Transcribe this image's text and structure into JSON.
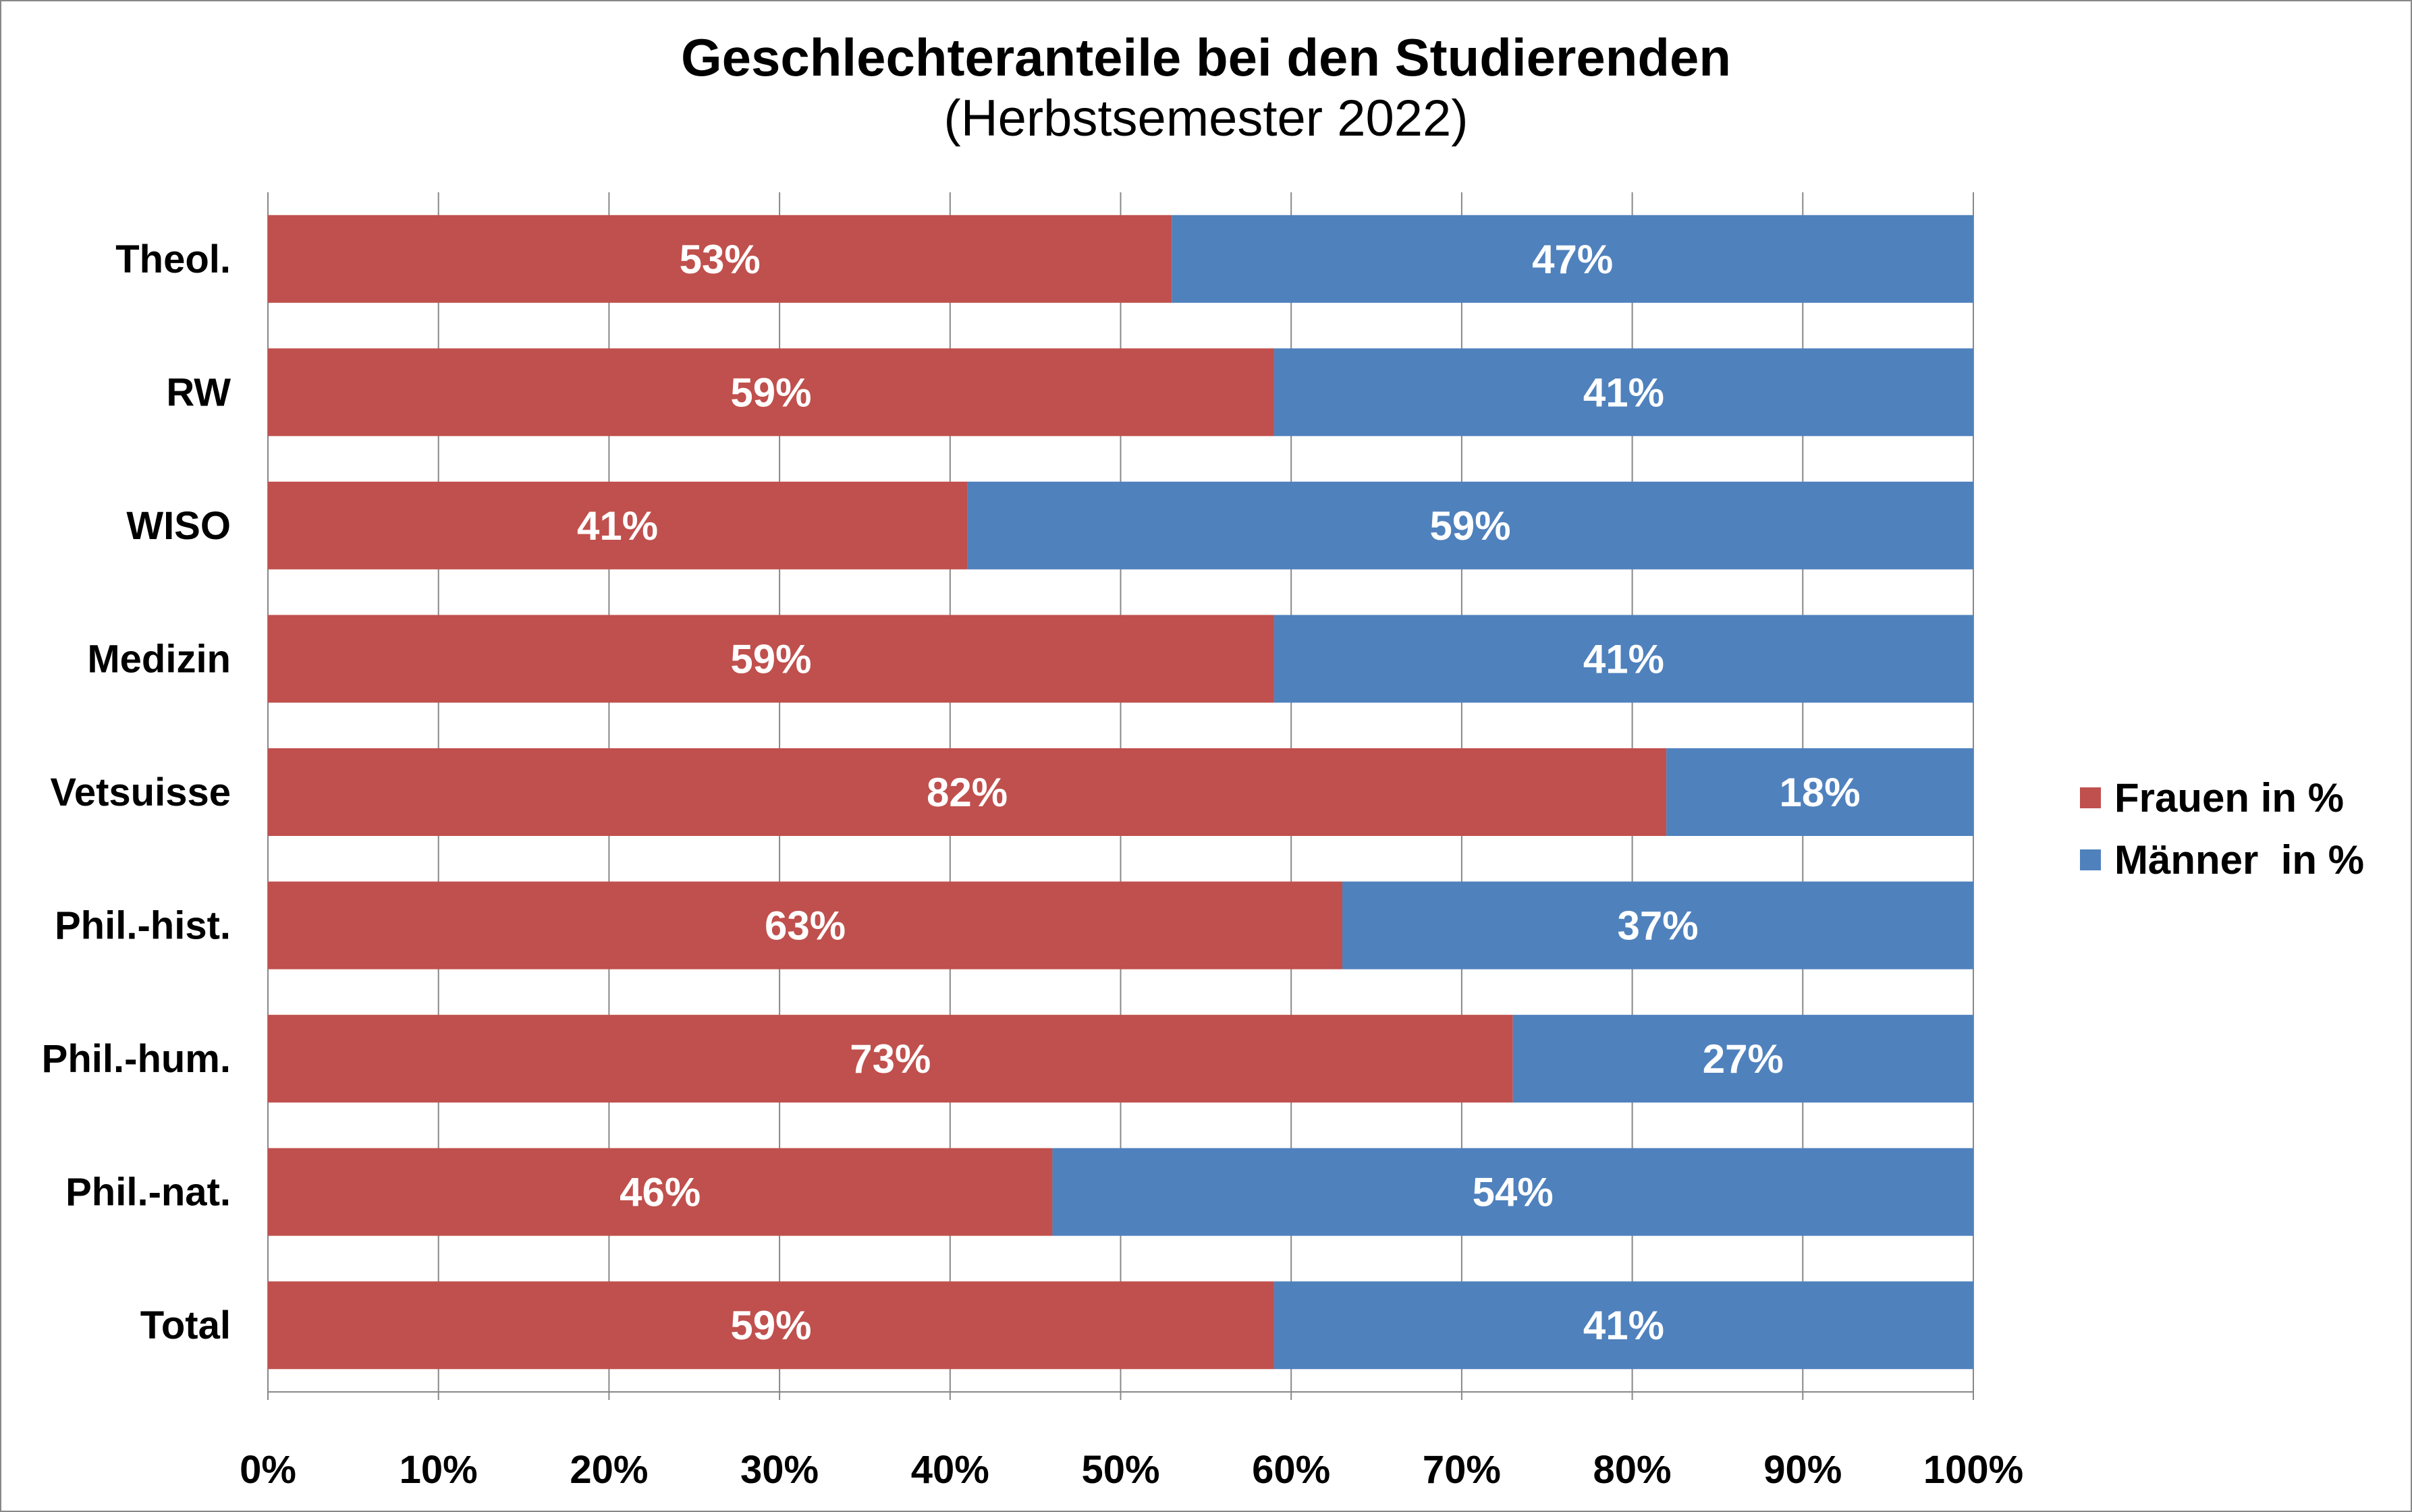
{
  "chart_data": {
    "type": "bar",
    "orientation": "horizontal",
    "stacked": "percent",
    "title": "Geschlechteranteile bei den Studierenden",
    "subtitle": "(Herbstsemester 2022)",
    "categories": [
      "Theol.",
      "RW",
      "WISO",
      "Medizin",
      "Vetsuisse",
      "Phil.-hist.",
      "Phil.-hum.",
      "Phil.-nat.",
      "Total"
    ],
    "series": [
      {
        "name": "Frauen in %",
        "color": "#C0504D",
        "values": [
          53,
          59,
          41,
          59,
          82,
          63,
          73,
          46,
          59
        ]
      },
      {
        "name": "Männer  in %",
        "color": "#4F81BD",
        "values": [
          47,
          41,
          59,
          41,
          18,
          37,
          27,
          54,
          41
        ]
      }
    ],
    "xlim": [
      0,
      100
    ],
    "xticks": [
      "0%",
      "10%",
      "20%",
      "30%",
      "40%",
      "50%",
      "60%",
      "70%",
      "80%",
      "90%",
      "100%"
    ],
    "grid": "vertical",
    "data_labels": true,
    "legend_position": "right"
  }
}
